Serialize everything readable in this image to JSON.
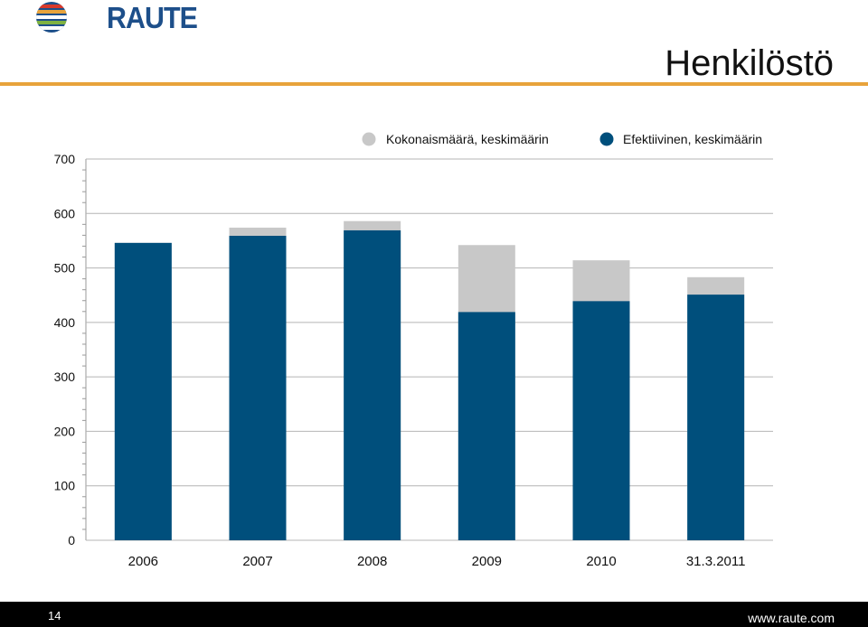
{
  "header": {
    "logo_text": "RAUTE",
    "title": "Henkilöstö"
  },
  "footer": {
    "page_number": "14",
    "website": "www.raute.com"
  },
  "colors": {
    "accent_rule": "#e8a33b",
    "series_total": "#c8c8c8",
    "series_effective": "#004f7c"
  },
  "chart_data": {
    "type": "bar",
    "stacked": "overlay",
    "categories": [
      "2006",
      "2007",
      "2008",
      "2009",
      "2010",
      "31.3.2011"
    ],
    "series": [
      {
        "name": "Kokonaismäärä, keskimäärin",
        "color": "#c8c8c8",
        "values": [
          546,
          574,
          586,
          542,
          514,
          483
        ]
      },
      {
        "name": "Efektiivinen, keskimäärin",
        "color": "#004f7c",
        "values": [
          546,
          559,
          569,
          419,
          439,
          451
        ]
      }
    ],
    "y_ticks": [
      "0",
      "100",
      "200",
      "300",
      "400",
      "500",
      "600",
      "700"
    ],
    "ylim": [
      0,
      700
    ],
    "grid": true,
    "legend_position": "top"
  }
}
